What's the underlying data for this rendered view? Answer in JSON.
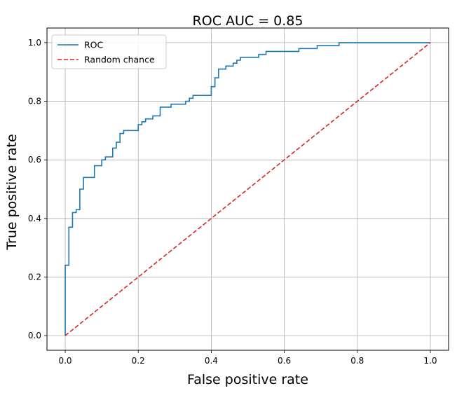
{
  "chart_data": {
    "type": "line",
    "title": "ROC AUC = 0.85",
    "xlabel": "False positive rate",
    "ylabel": "True positive rate",
    "xlim": [
      -0.05,
      1.05
    ],
    "ylim": [
      -0.05,
      1.05
    ],
    "xticks": [
      0.0,
      0.2,
      0.4,
      0.6,
      0.8,
      1.0
    ],
    "xtick_labels": [
      "0.0",
      "0.2",
      "0.4",
      "0.6",
      "0.8",
      "1.0"
    ],
    "yticks": [
      0.0,
      0.2,
      0.4,
      0.6,
      0.8,
      1.0
    ],
    "ytick_labels": [
      "0.0",
      "0.2",
      "0.4",
      "0.6",
      "0.8",
      "1.0"
    ],
    "grid": true,
    "legend": "upper-left",
    "series": [
      {
        "name": "ROC",
        "color": "#1f77b4",
        "style": "solid",
        "x": [
          0.0,
          0.0,
          0.01,
          0.01,
          0.02,
          0.02,
          0.03,
          0.03,
          0.04,
          0.04,
          0.05,
          0.05,
          0.08,
          0.08,
          0.1,
          0.1,
          0.11,
          0.11,
          0.13,
          0.13,
          0.14,
          0.14,
          0.15,
          0.15,
          0.16,
          0.16,
          0.2,
          0.2,
          0.21,
          0.21,
          0.22,
          0.22,
          0.24,
          0.24,
          0.26,
          0.26,
          0.29,
          0.29,
          0.33,
          0.33,
          0.34,
          0.34,
          0.35,
          0.35,
          0.4,
          0.4,
          0.41,
          0.41,
          0.42,
          0.42,
          0.44,
          0.44,
          0.46,
          0.46,
          0.47,
          0.47,
          0.48,
          0.48,
          0.53,
          0.53,
          0.55,
          0.55,
          0.64,
          0.64,
          0.69,
          0.69,
          0.75,
          0.75,
          1.0
        ],
        "y": [
          0.0,
          0.24,
          0.24,
          0.37,
          0.37,
          0.42,
          0.42,
          0.43,
          0.43,
          0.5,
          0.5,
          0.54,
          0.54,
          0.58,
          0.58,
          0.6,
          0.6,
          0.61,
          0.61,
          0.64,
          0.64,
          0.66,
          0.66,
          0.69,
          0.69,
          0.7,
          0.7,
          0.72,
          0.72,
          0.73,
          0.73,
          0.74,
          0.74,
          0.75,
          0.75,
          0.78,
          0.78,
          0.79,
          0.79,
          0.8,
          0.8,
          0.81,
          0.81,
          0.82,
          0.82,
          0.85,
          0.85,
          0.88,
          0.88,
          0.91,
          0.91,
          0.92,
          0.92,
          0.93,
          0.93,
          0.94,
          0.94,
          0.95,
          0.95,
          0.96,
          0.96,
          0.97,
          0.97,
          0.98,
          0.98,
          0.99,
          0.99,
          1.0,
          1.0
        ]
      },
      {
        "name": "Random chance",
        "color": "#d62728",
        "style": "dashed",
        "x": [
          0.0,
          1.0
        ],
        "y": [
          0.0,
          1.0
        ]
      }
    ]
  }
}
